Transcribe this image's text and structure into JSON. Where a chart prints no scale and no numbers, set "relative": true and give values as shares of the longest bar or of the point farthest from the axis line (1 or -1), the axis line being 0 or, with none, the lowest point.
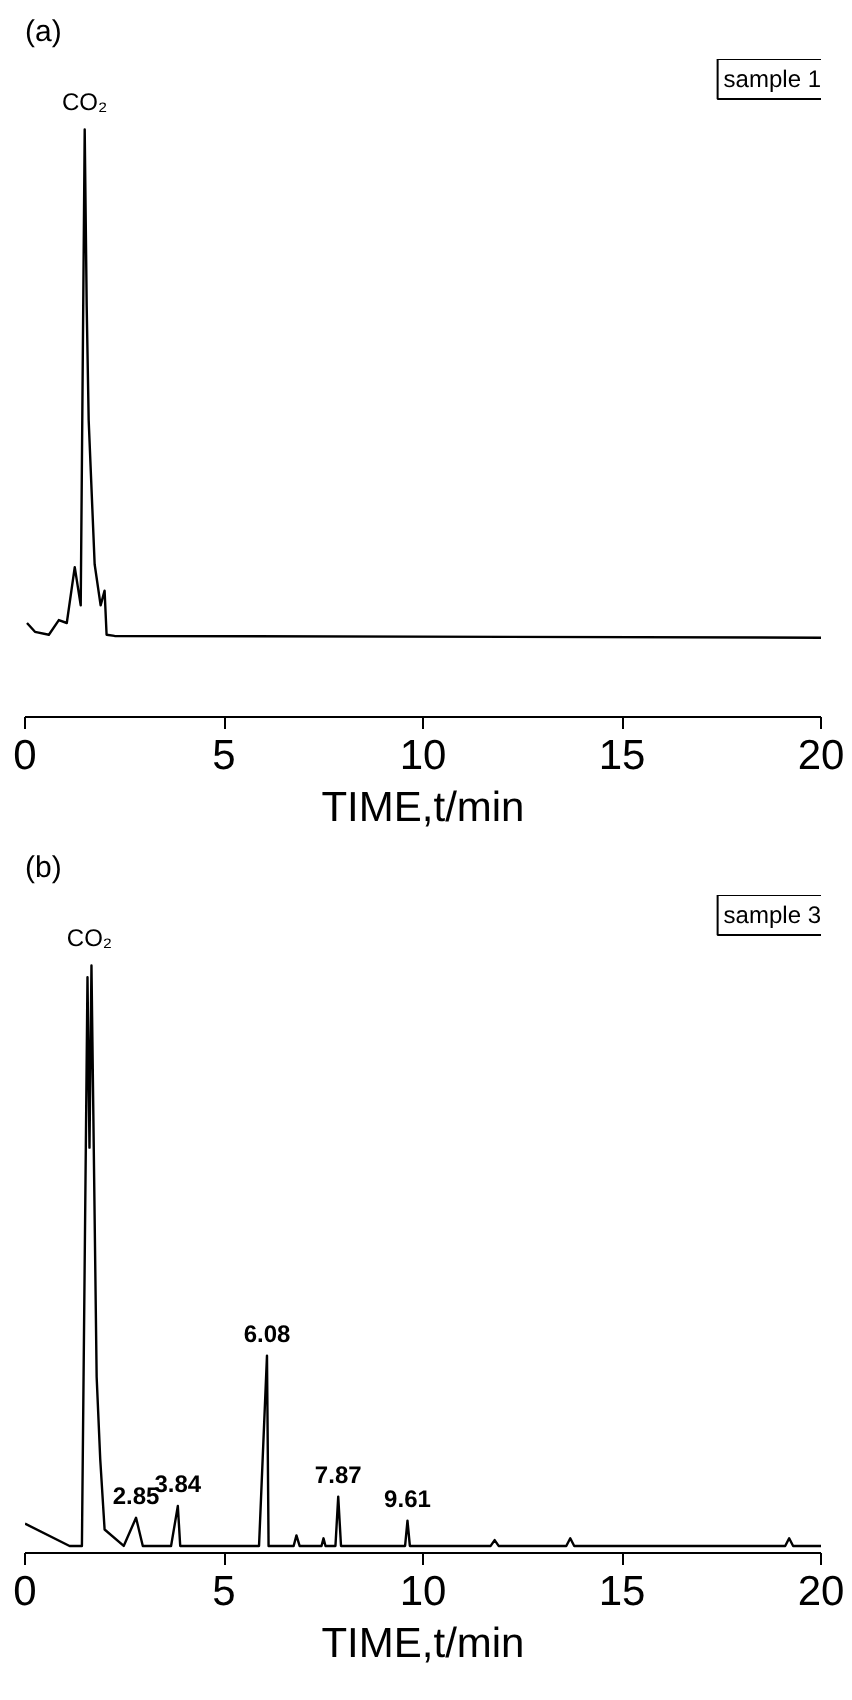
{
  "chart_data": [
    {
      "type": "line",
      "title": "(a)",
      "xlabel": "TIME,t/min",
      "relative": true,
      "tick_labels": "x",
      "grid": false,
      "marker": "none",
      "line_style": "solid",
      "xlim": [
        0,
        20
      ],
      "xticks": [
        0,
        5,
        10,
        15,
        20
      ],
      "series": [
        {
          "color": "#000000",
          "x": [
            0.05,
            0.25,
            0.6,
            0.85,
            1.05,
            1.25,
            1.4,
            1.5,
            1.55,
            1.6,
            1.75,
            1.9,
            2.0,
            2.05,
            2.25,
            20
          ],
          "values": [
            0.16,
            0.145,
            0.14,
            0.165,
            0.16,
            0.255,
            0.19,
            1.0,
            0.7,
            0.505,
            0.26,
            0.19,
            0.215,
            0.14,
            0.138,
            0.135
          ]
        }
      ],
      "annotations": [
        "sample 1",
        {
          "text": "CO₂",
          "x": 1.5,
          "y": 1.0
        }
      ]
    },
    {
      "type": "line",
      "title": "(b)",
      "xlabel": "TIME,t/min",
      "relative": true,
      "tick_labels": "x",
      "grid": false,
      "marker": "none",
      "line_style": "solid",
      "xlim": [
        0,
        20
      ],
      "xticks": [
        0,
        5,
        10,
        15,
        20
      ],
      "series": [
        {
          "color": "#000000",
          "x": [
            0.0,
            1.12,
            1.43,
            1.57,
            1.62,
            1.67,
            1.8,
            1.89,
            2.0,
            2.48,
            2.79,
            2.96,
            3.67,
            3.84,
            3.9,
            5.88,
            6.08,
            6.12,
            6.75,
            6.82,
            6.9,
            7.45,
            7.5,
            7.55,
            7.8,
            7.87,
            7.94,
            9.55,
            9.61,
            9.67,
            11.7,
            11.8,
            11.9,
            13.6,
            13.7,
            13.8,
            19.1,
            19.2,
            19.3,
            20
          ],
          "values": [
            0.05,
            0.012,
            0.012,
            0.98,
            0.69,
            1.0,
            0.3,
            0.16,
            0.04,
            0.012,
            0.06,
            0.012,
            0.012,
            0.08,
            0.012,
            0.012,
            0.336,
            0.012,
            0.012,
            0.03,
            0.012,
            0.012,
            0.025,
            0.012,
            0.012,
            0.096,
            0.012,
            0.012,
            0.055,
            0.012,
            0.012,
            0.022,
            0.012,
            0.012,
            0.025,
            0.012,
            0.012,
            0.025,
            0.012,
            0.012
          ]
        }
      ],
      "annotations": [
        "sample 3",
        {
          "text": "CO₂",
          "x": 1.62,
          "y": 1.0
        },
        {
          "text": "2.85",
          "x": 2.79,
          "y": 0.06
        },
        {
          "text": "3.84",
          "x": 3.84,
          "y": 0.08
        },
        {
          "text": "6.08",
          "x": 6.08,
          "y": 0.336
        },
        {
          "text": "7.87",
          "x": 7.87,
          "y": 0.096
        },
        {
          "text": "9.61",
          "x": 9.61,
          "y": 0.055
        }
      ]
    }
  ]
}
